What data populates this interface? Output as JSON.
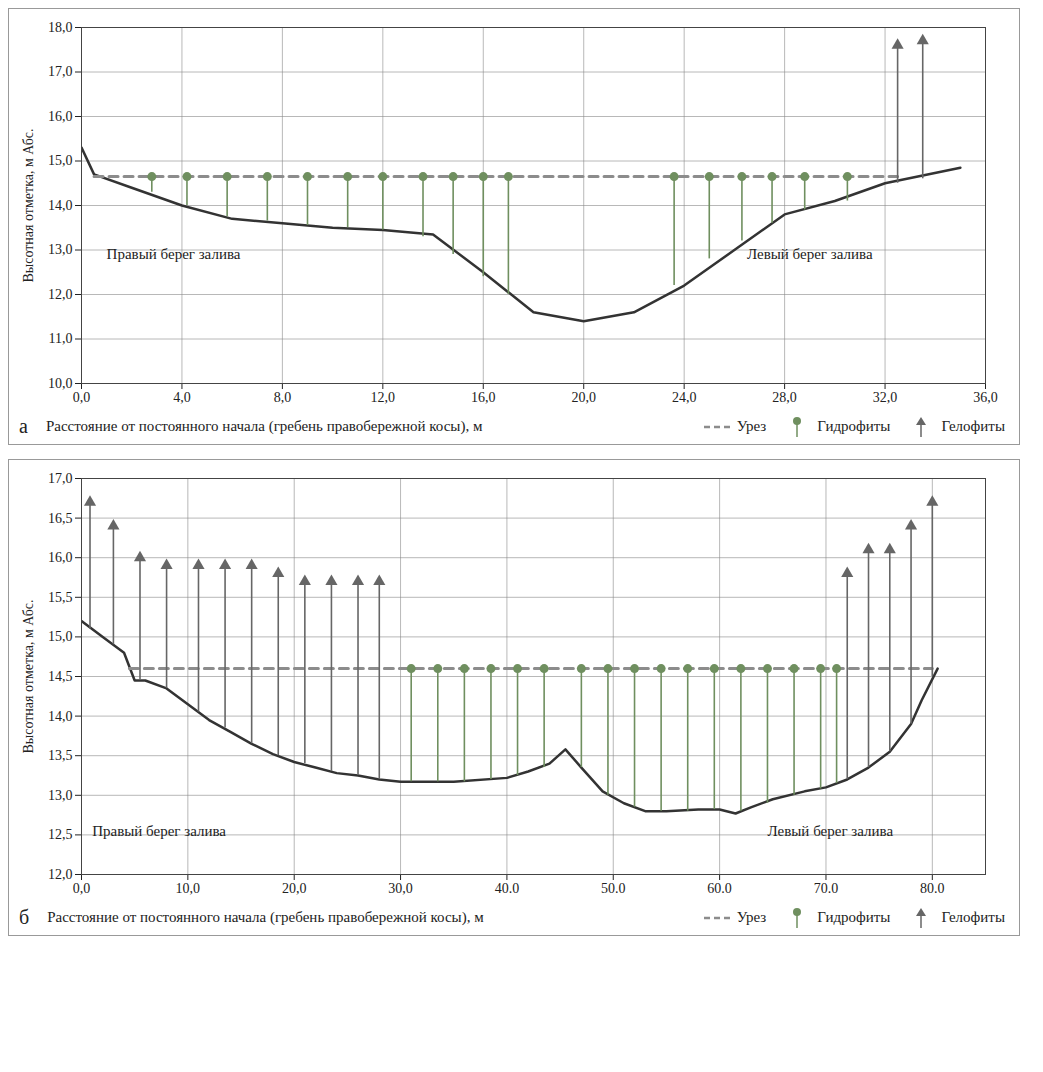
{
  "chart_data": [
    {
      "type": "line",
      "panel": "а",
      "y_label": "Высотная отметка, м Абс.",
      "x_label": "Расстояние от постоянного начала (гребень правобережной косы), м",
      "xlim": [
        0,
        36
      ],
      "xticks": [
        {
          "value": 0,
          "label": "0,0"
        },
        {
          "value": 4,
          "label": "4,0"
        },
        {
          "value": 8,
          "label": "8,0"
        },
        {
          "value": 12,
          "label": "12,0"
        },
        {
          "value": 16,
          "label": "16,0"
        },
        {
          "value": 20,
          "label": "20,0"
        },
        {
          "value": 24,
          "label": "24,0"
        },
        {
          "value": 28,
          "label": "28,0"
        },
        {
          "value": 32,
          "label": "32,0"
        },
        {
          "value": 36,
          "label": "36,0"
        }
      ],
      "ylim": [
        10,
        18
      ],
      "yticks": [
        {
          "value": 10,
          "label": "10,0"
        },
        {
          "value": 11,
          "label": "11,0"
        },
        {
          "value": 12,
          "label": "12,0"
        },
        {
          "value": 13,
          "label": "13,0"
        },
        {
          "value": 14,
          "label": "14,0"
        },
        {
          "value": 15,
          "label": "15,0"
        },
        {
          "value": 16,
          "label": "16,0"
        },
        {
          "value": 17,
          "label": "17,0"
        },
        {
          "value": 18,
          "label": "18,0"
        }
      ],
      "grid": true,
      "legend": "bottom-right",
      "annotations": [
        {
          "text": "Правый берег залива",
          "x": 1,
          "y": 12.9
        },
        {
          "text": "Левый берег залива",
          "x": 26.5,
          "y": 12.9
        }
      ],
      "series": [
        {
          "type": "line",
          "color": "#333333",
          "x": [
            0,
            0.5,
            2,
            4,
            6,
            8,
            10,
            12,
            14,
            16,
            18,
            20,
            22,
            24,
            26,
            28,
            30,
            32,
            35
          ],
          "values": [
            15.3,
            14.7,
            14.4,
            14.0,
            13.7,
            13.6,
            13.5,
            13.45,
            13.35,
            12.5,
            11.6,
            11.4,
            11.6,
            12.2,
            13.0,
            13.8,
            14.1,
            14.5,
            14.85
          ]
        },
        {
          "name": "Урез",
          "type": "line",
          "line_style": "dashed",
          "color": "#8c8c8c",
          "x": [
            0.5,
            32.5
          ],
          "values": [
            14.65,
            14.65
          ]
        },
        {
          "name": "Гидрофиты",
          "type": "scatter",
          "marker": "hydrophyte",
          "color": "#6f8f5f",
          "x": [
            2.8,
            4.2,
            5.8,
            7.4,
            9,
            10.6,
            12,
            13.6,
            14.8,
            16,
            17,
            23.6,
            25,
            26.3,
            27.5,
            28.8,
            30.5
          ],
          "values": [
            14.3,
            14.0,
            13.75,
            13.65,
            13.55,
            13.5,
            13.45,
            13.3,
            12.9,
            12.4,
            12.0,
            12.2,
            12.8,
            13.2,
            13.6,
            13.9,
            14.1
          ]
        },
        {
          "name": "Гелофиты",
          "type": "scatter",
          "marker": "helophyte",
          "color": "#666666",
          "x": [
            32.5,
            33.5
          ],
          "values": [
            14.5,
            14.6
          ],
          "top": [
            17.6,
            17.7
          ]
        }
      ]
    },
    {
      "type": "line",
      "panel": "б",
      "y_label": "Высотная отметка, м Абс.",
      "x_label": "Расстояние от постоянного начала (гребень правобережной косы), м",
      "xlim": [
        0,
        85
      ],
      "xticks": [
        {
          "value": 0,
          "label": "0,0"
        },
        {
          "value": 10,
          "label": "10,0"
        },
        {
          "value": 20,
          "label": "20,0"
        },
        {
          "value": 30,
          "label": "30,0"
        },
        {
          "value": 40,
          "label": "40.0"
        },
        {
          "value": 50,
          "label": "50.0"
        },
        {
          "value": 60,
          "label": "60.0"
        },
        {
          "value": 70,
          "label": "70.0"
        },
        {
          "value": 80,
          "label": "80.0"
        }
      ],
      "ylim": [
        12,
        17
      ],
      "yticks": [
        {
          "value": 12,
          "label": "12,0"
        },
        {
          "value": 12.5,
          "label": "12,5"
        },
        {
          "value": 13,
          "label": "13,0"
        },
        {
          "value": 13.5,
          "label": "13,5"
        },
        {
          "value": 14,
          "label": "14,0"
        },
        {
          "value": 14.5,
          "label": "14,5"
        },
        {
          "value": 15,
          "label": "15,0"
        },
        {
          "value": 15.5,
          "label": "15,5"
        },
        {
          "value": 16,
          "label": "16,0"
        },
        {
          "value": 16.5,
          "label": "16,5"
        },
        {
          "value": 17,
          "label": "17,0"
        }
      ],
      "grid": true,
      "legend": "bottom-right",
      "annotations": [
        {
          "text": "Правый берег залива",
          "x": 1,
          "y": 12.55
        },
        {
          "text": "Левый берег залива",
          "x": 64.5,
          "y": 12.55
        }
      ],
      "series": [
        {
          "type": "line",
          "color": "#333333",
          "x": [
            0,
            2,
            4,
            5,
            6,
            8,
            10,
            12,
            14,
            16,
            18,
            20,
            22,
            24,
            26,
            28,
            30,
            35,
            40,
            42,
            44,
            45.5,
            47,
            49,
            51,
            53,
            55,
            58,
            60,
            61.5,
            63,
            65,
            68,
            70,
            72,
            74,
            76,
            78,
            79,
            80.5
          ],
          "values": [
            15.2,
            15.0,
            14.8,
            14.45,
            14.45,
            14.35,
            14.15,
            13.95,
            13.8,
            13.65,
            13.52,
            13.42,
            13.35,
            13.28,
            13.25,
            13.2,
            13.17,
            13.17,
            13.22,
            13.3,
            13.4,
            13.58,
            13.35,
            13.05,
            12.9,
            12.8,
            12.8,
            12.82,
            12.82,
            12.77,
            12.85,
            12.95,
            13.05,
            13.1,
            13.2,
            13.35,
            13.55,
            13.9,
            14.2,
            14.6
          ]
        },
        {
          "name": "Урез",
          "type": "line",
          "line_style": "dashed",
          "color": "#8c8c8c",
          "x": [
            4.5,
            80
          ],
          "values": [
            14.6,
            14.6
          ]
        },
        {
          "name": "Гидрофиты",
          "type": "scatter",
          "marker": "hydrophyte",
          "color": "#6f8f5f",
          "x": [
            31,
            33.5,
            36,
            38.5,
            41,
            43.5,
            47,
            49.5,
            52,
            54.5,
            57,
            59.5,
            62,
            64.5,
            67,
            69.5,
            71
          ],
          "values": [
            13.17,
            13.17,
            13.17,
            13.2,
            13.25,
            13.35,
            13.35,
            13.0,
            12.85,
            12.8,
            12.8,
            12.82,
            12.8,
            12.9,
            13.0,
            13.08,
            13.15
          ]
        },
        {
          "name": "Гелофиты",
          "type": "scatter",
          "marker": "helophyte",
          "color": "#666666",
          "x": [
            0.8,
            3,
            5.5,
            8,
            11,
            13.5,
            16,
            18.5,
            21,
            23.5,
            26,
            28,
            72,
            74,
            76,
            78,
            80
          ],
          "values": [
            15.1,
            14.9,
            14.45,
            14.35,
            14.05,
            13.85,
            13.65,
            13.5,
            13.4,
            13.3,
            13.25,
            13.2,
            13.2,
            13.35,
            13.55,
            13.9,
            14.5
          ],
          "top": [
            16.7,
            16.4,
            16.0,
            15.9,
            15.9,
            15.9,
            15.9,
            15.8,
            15.7,
            15.7,
            15.7,
            15.7,
            15.8,
            16.1,
            16.1,
            16.4,
            16.7
          ]
        }
      ]
    }
  ]
}
